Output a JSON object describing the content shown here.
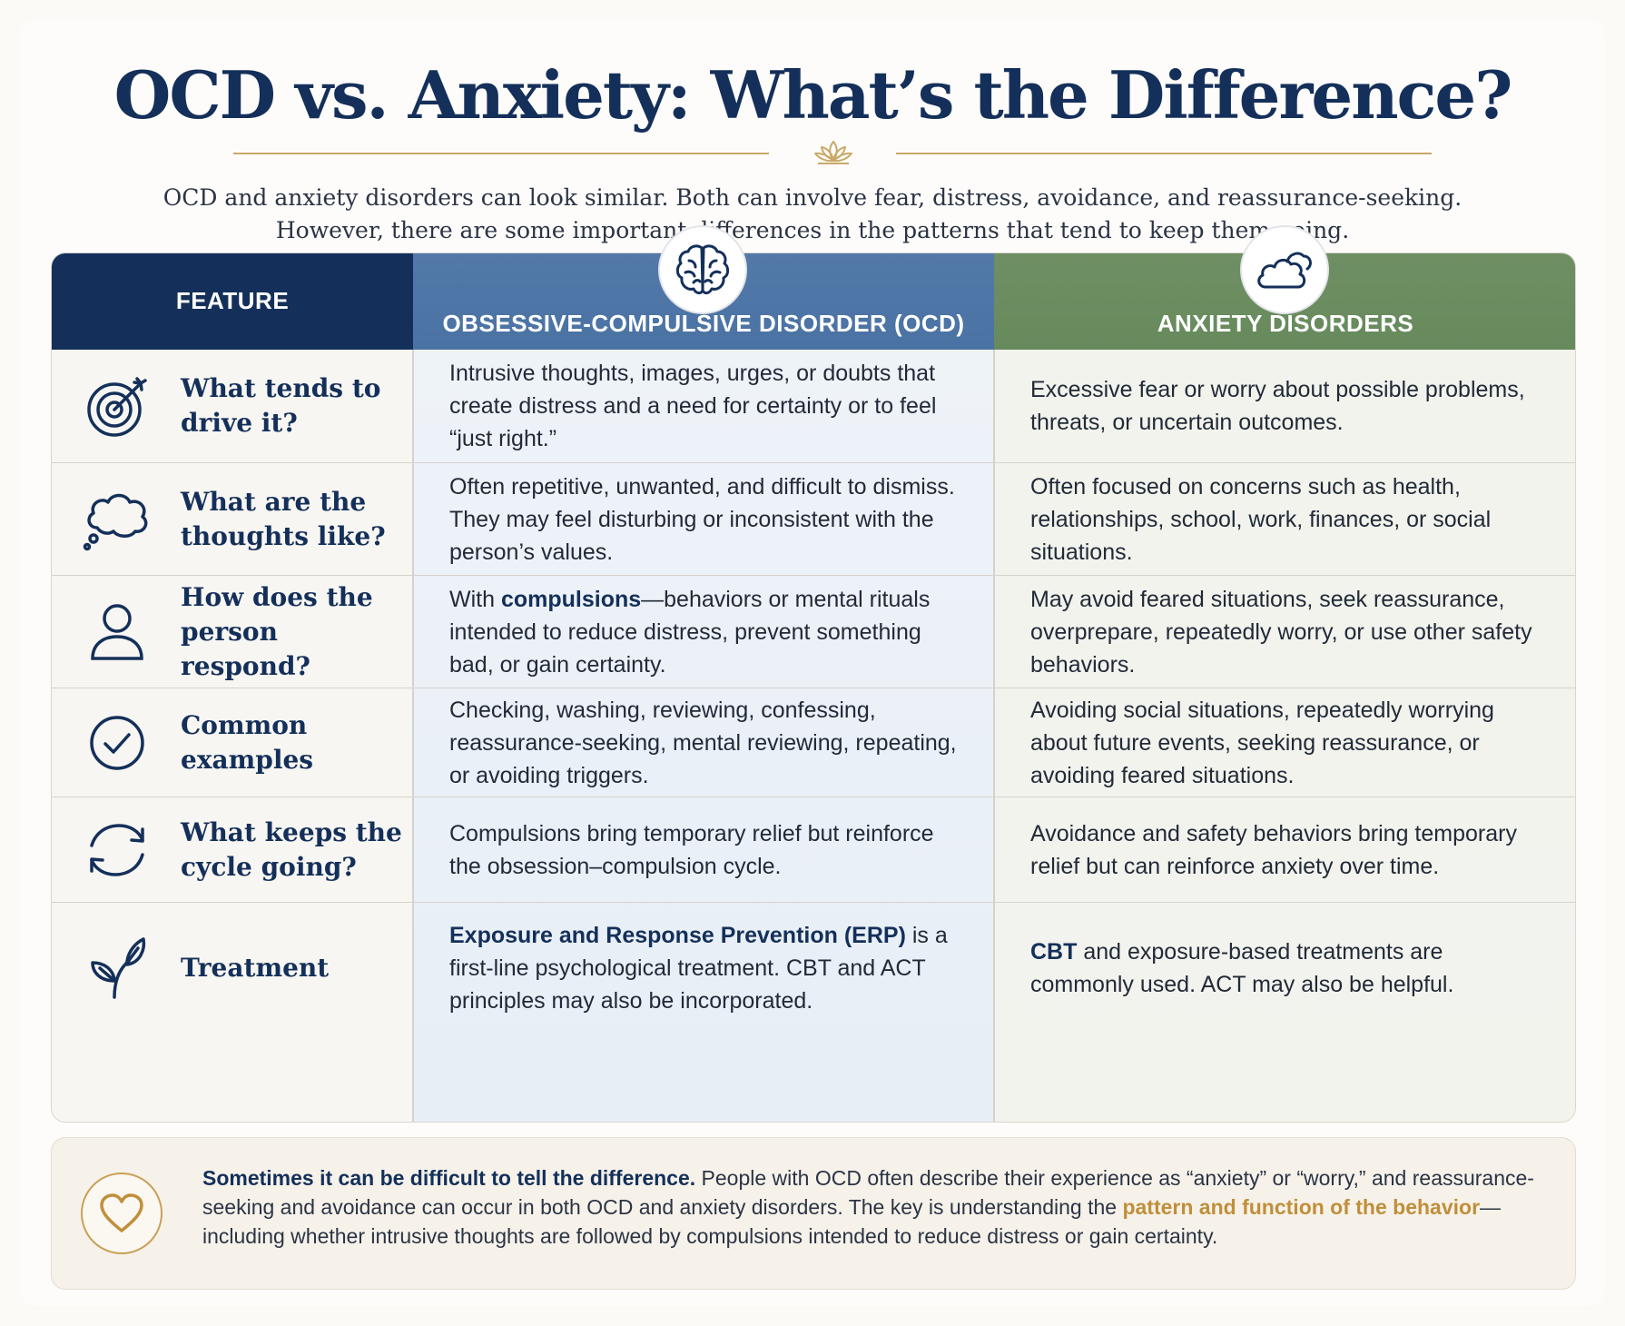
{
  "title": "OCD vs. Anxiety: What’s the Difference?",
  "intro": {
    "line1": "OCD and anxiety disorders can look similar. Both can involve fear, distress, avoidance, and reassurance-seeking.",
    "line2": "However, there are some important differences in the patterns that tend to keep them going."
  },
  "columns": {
    "feature": "FEATURE",
    "ocd": "OBSESSIVE-COMPULSIVE DISORDER (OCD)",
    "anxiety": "ANXIETY DISORDERS",
    "ocd_icon": "brain-icon",
    "anxiety_icon": "cloud-icon"
  },
  "rows": [
    {
      "icon": "target-icon",
      "feature": "What tends to drive it?",
      "ocd": "Intrusive thoughts, images, urges, or doubts that create distress and a need for certainty or to feel “just right.”",
      "anxiety": "Excessive fear or worry about possible problems, threats, or uncertain outcomes."
    },
    {
      "icon": "thought-bubble-icon",
      "feature": "What are the thoughts like?",
      "ocd": "Often repetitive, unwanted, and difficult to dismiss. They may feel disturbing or inconsistent with the person’s values.",
      "anxiety": "Often focused on concerns such as health, relationships, school, work, finances, or social situations."
    },
    {
      "icon": "person-icon",
      "feature": "How does the person respond?",
      "ocd_pre": "With ",
      "ocd_bold": "compulsions",
      "ocd_post": "—behaviors or mental rituals intended to reduce distress, prevent something bad, or gain certainty.",
      "anxiety": "May avoid feared situations, seek reassurance, overprepare, repeatedly worry, or use other safety behaviors."
    },
    {
      "icon": "check-circle-icon",
      "feature": "Common examples",
      "ocd": "Checking, washing, reviewing, confessing, reassurance-seeking, mental reviewing, repeating, or avoiding triggers.",
      "anxiety": "Avoiding social situations, repeatedly worrying about future events, seeking reassurance, or avoiding feared situations."
    },
    {
      "icon": "cycle-arrows-icon",
      "feature": "What keeps the cycle going?",
      "ocd": "Compulsions bring temporary relief but reinforce the obsession–compulsion cycle.",
      "anxiety": "Avoidance and safety behaviors bring temporary relief but can reinforce anxiety over time."
    },
    {
      "icon": "sprout-icon",
      "feature": "Treatment",
      "ocd_bold": "Exposure and Response Prevention (ERP)",
      "ocd_post": " is a first-line psychological treatment. CBT and ACT principles may also be incorporated.",
      "anxiety_bold": "CBT",
      "anxiety_post": " and exposure-based treatments are commonly used. ACT may also be helpful."
    }
  ],
  "callout": {
    "icon": "heart-icon",
    "lead": "Sometimes it can be difficult to tell the difference.",
    "body1": " People with OCD often describe their experience as “anxiety” or “worry,” and reassurance-seeking and avoidance can occur in both OCD and anxiety disorders. The key is understanding the ",
    "highlight": "pattern and function of the behavior",
    "body2": "—including whether intrusive thoughts are followed by compulsions intended to reduce distress or gain certainty."
  },
  "colors": {
    "navy": "#14305a",
    "ocd_blue": "#4a72a3",
    "anxiety_green": "#678a5d",
    "gold": "#c08f3a"
  }
}
